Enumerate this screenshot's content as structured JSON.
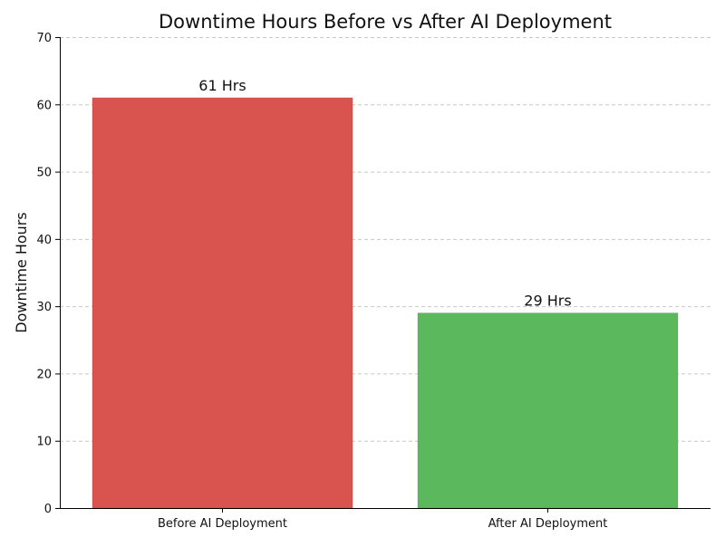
{
  "chart_data": {
    "type": "bar",
    "title": "Downtime Hours Before vs After AI Deployment",
    "xlabel": "",
    "ylabel": "Downtime Hours",
    "categories": [
      "Before AI Deployment",
      "After AI Deployment"
    ],
    "values": [
      61,
      29
    ],
    "data_labels": [
      "61 Hrs",
      "29 Hrs"
    ],
    "colors": [
      "#d9534f",
      "#5cb85c"
    ],
    "ylim": [
      0,
      70
    ],
    "yticks": [
      0,
      10,
      20,
      30,
      40,
      50,
      60,
      70
    ],
    "grid": true,
    "grid_axis": "y"
  }
}
